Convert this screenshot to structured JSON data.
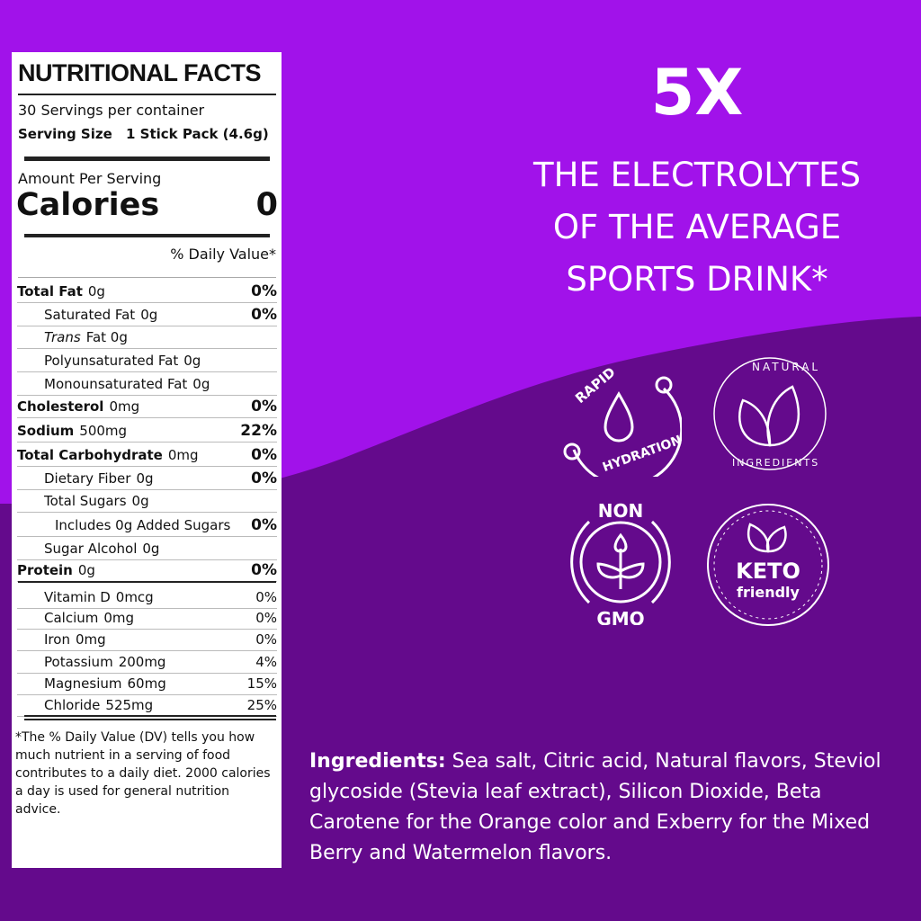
{
  "colors": {
    "bg_top": "#a112ea",
    "bg_bottom": "#640a8c",
    "label_bg": "#ffffff",
    "text": "#ffffff"
  },
  "label": {
    "title": "NUTRITIONAL FACTS",
    "servings": "30 Servings per container",
    "serving_size_label": "Serving Size",
    "serving_size_value": "1 Stick Pack (4.6g)",
    "amount_per_serving": "Amount Per Serving",
    "calories_label": "Calories",
    "calories_value": "0",
    "daily_value_header": "% Daily Value*",
    "rows": [
      {
        "name": "Total Fat",
        "amount": "0g",
        "dv": "0%",
        "bold": true,
        "indent": 0
      },
      {
        "name": "Saturated Fat",
        "amount": "0g",
        "dv": "0%",
        "bold": false,
        "indent": 1
      },
      {
        "name": "Trans",
        "amount": "Fat 0g",
        "dv": "",
        "bold": false,
        "indent": 1,
        "italic": true
      },
      {
        "name": "Polyunsaturated Fat",
        "amount": "0g",
        "dv": "",
        "bold": false,
        "indent": 1
      },
      {
        "name": "Monounsaturated Fat",
        "amount": "0g",
        "dv": "",
        "bold": false,
        "indent": 1
      },
      {
        "name": "Cholesterol",
        "amount": "0mg",
        "dv": "0%",
        "bold": true,
        "indent": 0
      },
      {
        "name": "Sodium",
        "amount": "500mg",
        "dv": "22%",
        "bold": true,
        "indent": 0
      },
      {
        "name": "Total Carbohydrate",
        "amount": "0mg",
        "dv": "0%",
        "bold": true,
        "indent": 0
      },
      {
        "name": "Dietary Fiber",
        "amount": "0g",
        "dv": "0%",
        "bold": false,
        "indent": 1
      },
      {
        "name": "Total Sugars",
        "amount": "0g",
        "dv": "",
        "bold": false,
        "indent": 1
      },
      {
        "name": "Includes 0g Added Sugars",
        "amount": "",
        "dv": "0%",
        "bold": false,
        "indent": 2
      },
      {
        "name": "Sugar Alcohol",
        "amount": "0g",
        "dv": "",
        "bold": false,
        "indent": 1
      },
      {
        "name": "Protein",
        "amount": "0g",
        "dv": "0%",
        "bold": true,
        "indent": 0
      },
      {
        "name": "Vitamin D",
        "amount": "0mcg",
        "dv": "0%",
        "bold": false,
        "indent": 1,
        "minor": true
      },
      {
        "name": "Calcium",
        "amount": "0mg",
        "dv": "0%",
        "bold": false,
        "indent": 1,
        "minor": true
      },
      {
        "name": "Iron",
        "amount": "0mg",
        "dv": "0%",
        "bold": false,
        "indent": 1,
        "minor": true
      },
      {
        "name": "Potassium",
        "amount": "200mg",
        "dv": "4%",
        "bold": false,
        "indent": 1,
        "minor": true
      },
      {
        "name": "Magnesium",
        "amount": "60mg",
        "dv": "15%",
        "bold": false,
        "indent": 1,
        "minor": true
      },
      {
        "name": "Chloride",
        "amount": "525mg",
        "dv": "25%",
        "bold": false,
        "indent": 1,
        "minor": true
      }
    ],
    "footnote": "*The % Daily Value (DV) tells you how much nutrient in a serving of food contributes to a daily diet. 2000 calories a day is used for general nutrition advice."
  },
  "headline": {
    "big": "5X",
    "line1": "THE ELECTROLYTES",
    "line2": "OF THE AVERAGE",
    "line3": "SPORTS DRINK*"
  },
  "badges": {
    "rapid": {
      "top": "RAPID",
      "bottom": "HYDRATION",
      "icon": "water-drop-icon"
    },
    "natural": {
      "top": "NATURAL",
      "bottom": "INGREDIENTS",
      "icon": "leaves-icon"
    },
    "nongmo": {
      "top": "NON",
      "bottom": "GMO",
      "icon": "sprout-icon"
    },
    "keto": {
      "top": "KETO",
      "bottom": "friendly",
      "icon": "leaves-icon"
    }
  },
  "ingredients": {
    "label": "Ingredients:",
    "text": " Sea salt, Citric acid, Natural flavors, Steviol glycoside (Stevia leaf extract), Silicon Dioxide, Beta Carotene for the Orange color and Exberry for the Mixed Berry and Watermelon flavors."
  }
}
